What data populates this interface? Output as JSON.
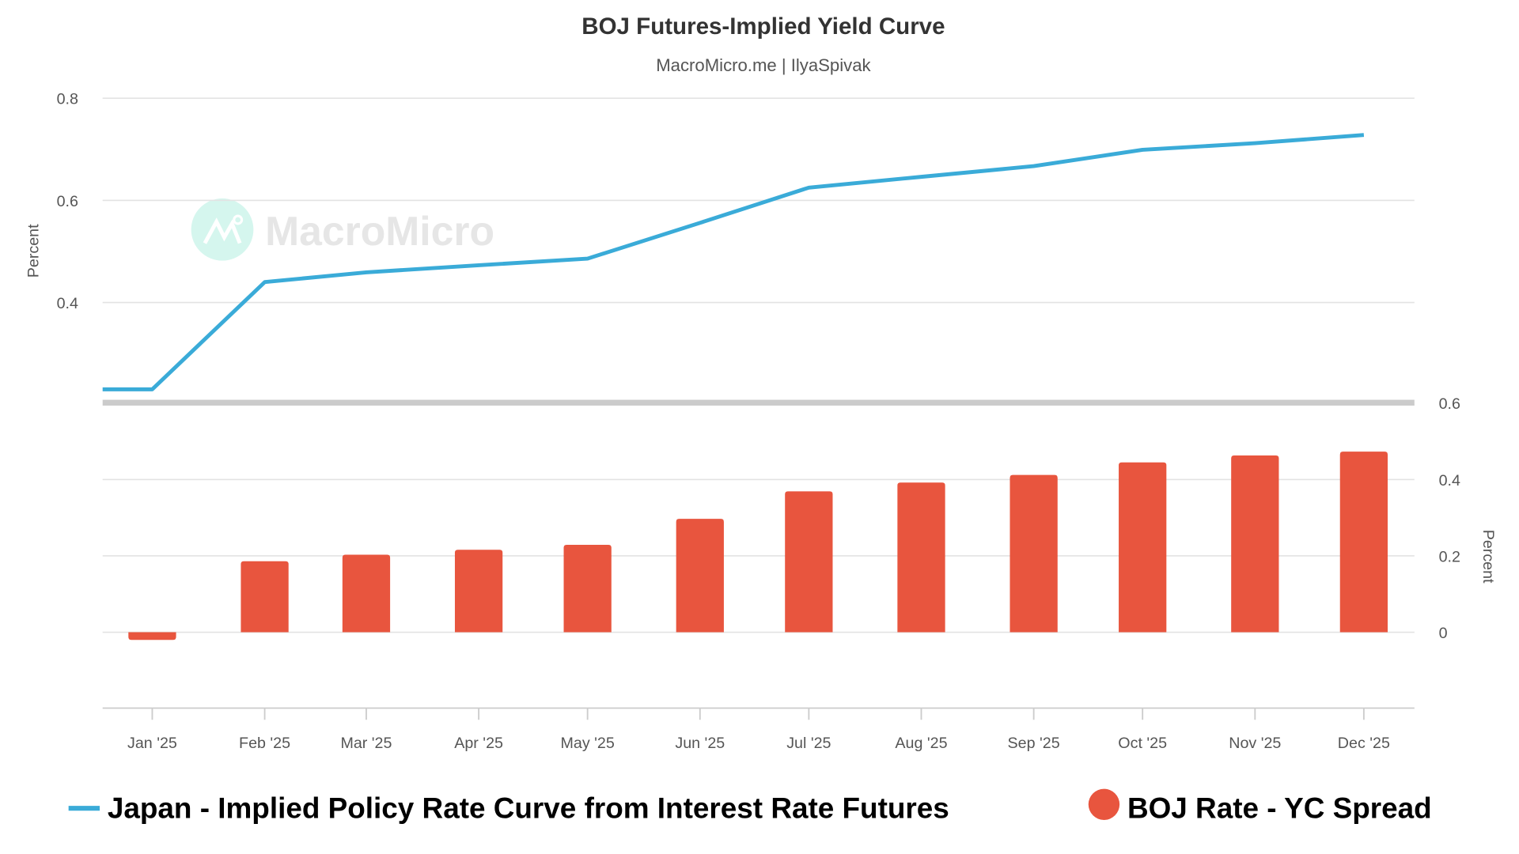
{
  "chart_data": {
    "title": "BOJ Futures-Implied Yield Curve",
    "subtitle": "MacroMicro.me | IlyaSpivak",
    "watermark": "MacroMicro",
    "colors": {
      "line": "#3aabd8",
      "bar": "#e8553e",
      "watermark_circle": "#d5f6ee",
      "watermark_text": "#e6e6e6"
    },
    "x_tick_labels": [
      "Jan '25",
      "Feb '25",
      "Mar '25",
      "Apr '25",
      "May '25",
      "Jun '25",
      "Jul '25",
      "Aug '25",
      "Sep '25",
      "Oct '25",
      "Nov '25",
      "Dec '25"
    ],
    "x_tick_dates": [
      "2025-01-01",
      "2025-02-01",
      "2025-03-01",
      "2025-04-01",
      "2025-05-01",
      "2025-06-01",
      "2025-07-01",
      "2025-08-01",
      "2025-09-01",
      "2025-10-01",
      "2025-11-01",
      "2025-12-01"
    ],
    "legend_placement": "bottom",
    "grid": true,
    "panels": [
      {
        "type": "line",
        "ylabel": "Percent",
        "y_axis_side": "left",
        "yticks": [
          0.4,
          0.6,
          0.8
        ],
        "ylim": [
          0.205,
          0.82
        ],
        "series": [
          {
            "name": "Japan - Implied Policy Rate Curve from Interest Rate Futures",
            "x": [
              "2024-12-18",
              "2025-01-01",
              "2025-02-01",
              "2025-03-01",
              "2025-04-01",
              "2025-05-01",
              "2025-06-01",
              "2025-07-01",
              "2025-08-01",
              "2025-09-01",
              "2025-10-01",
              "2025-11-01",
              "2025-12-01"
            ],
            "y": [
              0.23,
              0.23,
              0.44,
              0.459,
              0.473,
              0.486,
              0.556,
              0.625,
              0.646,
              0.667,
              0.699,
              0.712,
              0.728
            ]
          }
        ]
      },
      {
        "type": "bar",
        "ylabel": "Percent",
        "y_axis_side": "right",
        "yticks": [
          0,
          0.2,
          0.4,
          0.6
        ],
        "ylim": [
          -0.2,
          0.6
        ],
        "series": [
          {
            "name": "BOJ Rate - YC Spread",
            "x": [
              "2025-01-01",
              "2025-02-01",
              "2025-03-01",
              "2025-04-01",
              "2025-05-01",
              "2025-06-01",
              "2025-07-01",
              "2025-08-01",
              "2025-09-01",
              "2025-10-01",
              "2025-11-01",
              "2025-12-01"
            ],
            "y": [
              -0.02,
              0.186,
              0.203,
              0.216,
              0.229,
              0.297,
              0.369,
              0.392,
              0.412,
              0.445,
              0.463,
              0.473
            ]
          }
        ]
      }
    ]
  }
}
